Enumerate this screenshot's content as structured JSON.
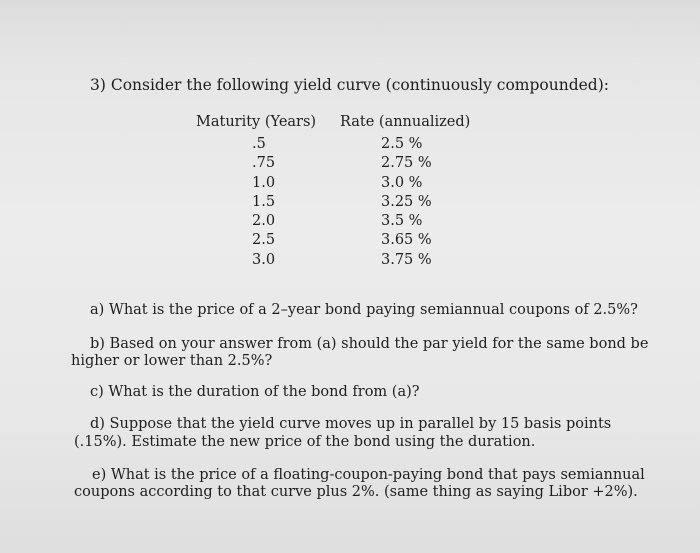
{
  "problem": {
    "title": "3) Consider the following yield curve (continuously compounded):",
    "table": {
      "headers": {
        "maturity": "Maturity (Years)",
        "rate": "Rate (annualized)"
      },
      "rows": [
        {
          "maturity": ".5",
          "rate": "2.5 %"
        },
        {
          "maturity": ".75",
          "rate": "2.75 %"
        },
        {
          "maturity": "1.0",
          "rate": "3.0 %"
        },
        {
          "maturity": "1.5",
          "rate": "3.25 %"
        },
        {
          "maturity": "2.0",
          "rate": "3.5 %"
        },
        {
          "maturity": "2.5",
          "rate": "3.65 %"
        },
        {
          "maturity": "3.0",
          "rate": "3.75 %"
        }
      ]
    },
    "questions": {
      "a": "a) What is the price of a 2–year bond paying semiannual coupons of 2.5%?",
      "b_line1": "b) Based on your answer from (a) should the par yield for the same bond be",
      "b_line2": "higher or lower than 2.5%?",
      "c": "c) What is the duration of the bond from (a)?",
      "d_line1": "d) Suppose that the yield curve moves up in parallel by 15 basis points",
      "d_line2": "(.15%). Estimate the new price of the bond using the duration.",
      "e_line1": "e) What is the price of a floating-coupon-paying bond that pays semiannual",
      "e_line2": "coupons according to that curve plus 2%. (same thing as saying Libor +2%)."
    }
  }
}
